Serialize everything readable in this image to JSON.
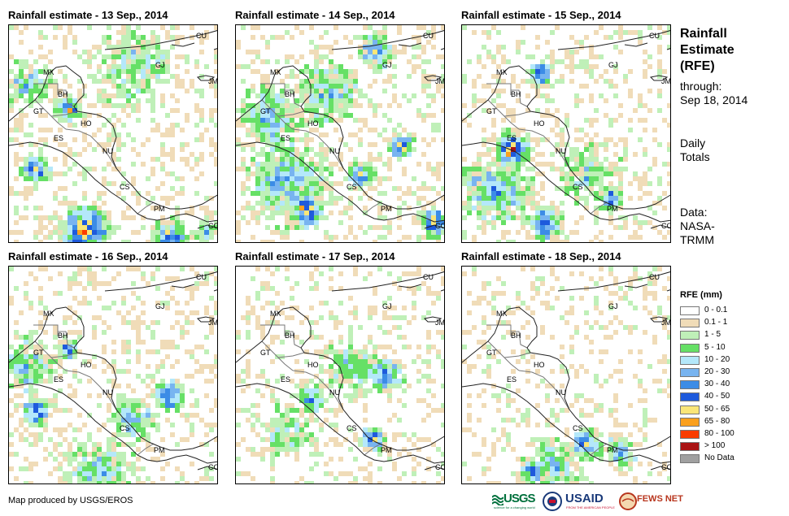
{
  "panels": [
    {
      "title": "Rainfall estimate - 13 Sep., 2014"
    },
    {
      "title": "Rainfall estimate - 14 Sep., 2014"
    },
    {
      "title": "Rainfall estimate - 15 Sep., 2014"
    },
    {
      "title": "Rainfall estimate - 16 Sep., 2014"
    },
    {
      "title": "Rainfall estimate - 17 Sep., 2014"
    },
    {
      "title": "Rainfall estimate - 18 Sep., 2014"
    }
  ],
  "map_labels": {
    "cu": "CU",
    "mx": "MX",
    "gj": "GJ",
    "jm": "JM",
    "bh": "BH",
    "gt": "GT",
    "ho": "HO",
    "es": "ES",
    "nu": "NU",
    "cs": "CS",
    "pm": "PM",
    "co": "CO"
  },
  "sidebar": {
    "heading_line1": "Rainfall",
    "heading_line2": "Estimate",
    "heading_line3": "(RFE)",
    "through_label": "through:",
    "through_date": "Sep 18, 2014",
    "totals_line1": "Daily",
    "totals_line2": "Totals",
    "data_line1": "Data:",
    "data_line2": "NASA-",
    "data_line3": "TRMM"
  },
  "legend": {
    "title": "RFE (mm)",
    "items": [
      {
        "label": "0 - 0.1",
        "color": "#ffffff"
      },
      {
        "label": "0.1 - 1",
        "color": "#f0dcb8"
      },
      {
        "label": "1 - 5",
        "color": "#bff0b8"
      },
      {
        "label": "5 - 10",
        "color": "#66e066"
      },
      {
        "label": "10 - 20",
        "color": "#b4e8fa"
      },
      {
        "label": "20 - 30",
        "color": "#78b4f0"
      },
      {
        "label": "30 - 40",
        "color": "#3c8ce6"
      },
      {
        "label": "40 - 50",
        "color": "#1e5adc"
      },
      {
        "label": "50 - 65",
        "color": "#fae678"
      },
      {
        "label": "65 - 80",
        "color": "#faa01e"
      },
      {
        "label": "80 - 100",
        "color": "#fa3c00"
      },
      {
        "label": "> 100",
        "color": "#aa1414"
      },
      {
        "label": "No Data",
        "color": "#a0a0a0"
      }
    ]
  },
  "footer": "Map produced by USGS/EROS",
  "logos": {
    "usgs": "USGS",
    "usgs_tag": "science for a changing world",
    "usaid": "USAID",
    "usaid_tag": "FROM THE AMERICAN PEOPLE",
    "fews": "FEWS NET"
  }
}
